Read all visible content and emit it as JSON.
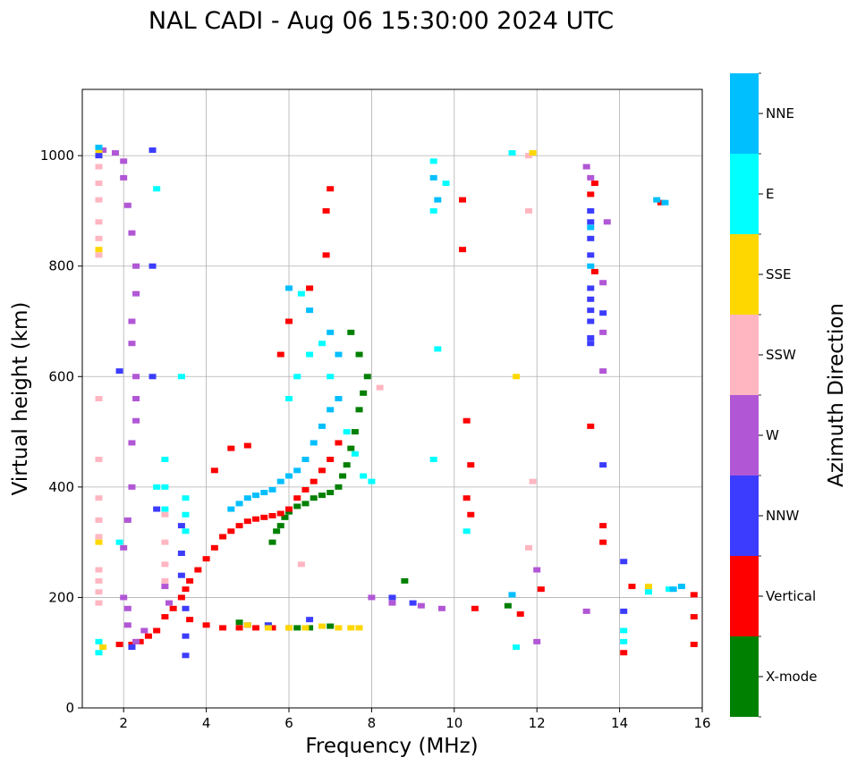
{
  "chart_data": {
    "type": "scatter",
    "title": "NAL CADI - Aug 06 15:30:00 2024 UTC",
    "xlabel": "Frequency (MHz)",
    "ylabel": "Virtual height (km)",
    "xlim": [
      1.0,
      16.0
    ],
    "ylim": [
      0,
      1120
    ],
    "xticks": [
      2,
      4,
      6,
      8,
      10,
      12,
      14,
      16
    ],
    "yticks": [
      0,
      200,
      400,
      600,
      800,
      1000
    ],
    "grid": true,
    "colorbar": {
      "label": "Azimuth Direction",
      "categories": [
        {
          "name": "X-mode",
          "color": "#008000"
        },
        {
          "name": "Vertical",
          "color": "#ff0000"
        },
        {
          "name": "NNW",
          "color": "#3c3cff"
        },
        {
          "name": "W",
          "color": "#b157d6"
        },
        {
          "name": "SSW",
          "color": "#ffb6c1"
        },
        {
          "name": "SSE",
          "color": "#ffd700"
        },
        {
          "name": "E",
          "color": "#00ffff"
        },
        {
          "name": "NNE",
          "color": "#00bfff"
        }
      ]
    },
    "series": [
      {
        "name": "X-mode",
        "points": [
          [
            5.6,
            300
          ],
          [
            5.7,
            320
          ],
          [
            5.8,
            330
          ],
          [
            5.9,
            345
          ],
          [
            6.0,
            355
          ],
          [
            6.2,
            365
          ],
          [
            6.4,
            370
          ],
          [
            6.6,
            380
          ],
          [
            6.8,
            385
          ],
          [
            7.0,
            390
          ],
          [
            7.2,
            400
          ],
          [
            7.3,
            420
          ],
          [
            7.4,
            440
          ],
          [
            7.5,
            470
          ],
          [
            7.6,
            500
          ],
          [
            7.7,
            540
          ],
          [
            7.8,
            570
          ],
          [
            7.9,
            600
          ],
          [
            7.7,
            640
          ],
          [
            7.5,
            680
          ],
          [
            6.2,
            145
          ],
          [
            6.5,
            145
          ],
          [
            7.0,
            148
          ],
          [
            8.8,
            230
          ],
          [
            11.3,
            185
          ],
          [
            4.8,
            155
          ],
          [
            5.5,
            150
          ]
        ]
      },
      {
        "name": "Vertical",
        "points": [
          [
            1.9,
            115
          ],
          [
            2.2,
            115
          ],
          [
            2.4,
            120
          ],
          [
            2.6,
            130
          ],
          [
            2.8,
            140
          ],
          [
            3.0,
            165
          ],
          [
            3.2,
            180
          ],
          [
            3.4,
            200
          ],
          [
            3.5,
            215
          ],
          [
            3.6,
            230
          ],
          [
            3.8,
            250
          ],
          [
            4.0,
            270
          ],
          [
            4.2,
            290
          ],
          [
            4.4,
            310
          ],
          [
            4.6,
            320
          ],
          [
            4.8,
            330
          ],
          [
            5.0,
            338
          ],
          [
            5.2,
            342
          ],
          [
            5.4,
            345
          ],
          [
            5.6,
            348
          ],
          [
            5.8,
            352
          ],
          [
            6.0,
            360
          ],
          [
            6.2,
            380
          ],
          [
            6.4,
            395
          ],
          [
            6.6,
            410
          ],
          [
            6.8,
            430
          ],
          [
            7.0,
            450
          ],
          [
            7.2,
            480
          ],
          [
            3.6,
            160
          ],
          [
            4.0,
            150
          ],
          [
            4.4,
            145
          ],
          [
            4.8,
            145
          ],
          [
            5.2,
            145
          ],
          [
            5.6,
            145
          ],
          [
            6.0,
            145
          ],
          [
            4.2,
            430
          ],
          [
            4.6,
            470
          ],
          [
            5.0,
            475
          ],
          [
            5.8,
            640
          ],
          [
            6.0,
            700
          ],
          [
            6.5,
            760
          ],
          [
            6.9,
            820
          ],
          [
            6.9,
            900
          ],
          [
            7.0,
            940
          ],
          [
            10.2,
            920
          ],
          [
            10.2,
            830
          ],
          [
            10.3,
            520
          ],
          [
            10.4,
            440
          ],
          [
            10.3,
            380
          ],
          [
            10.4,
            350
          ],
          [
            10.5,
            180
          ],
          [
            11.6,
            170
          ],
          [
            12.1,
            215
          ],
          [
            13.3,
            510
          ],
          [
            13.6,
            330
          ],
          [
            13.6,
            300
          ],
          [
            14.1,
            100
          ],
          [
            14.3,
            220
          ],
          [
            15.0,
            915
          ],
          [
            15.8,
            205
          ],
          [
            15.8,
            165
          ],
          [
            15.8,
            115
          ],
          [
            13.4,
            950
          ],
          [
            13.3,
            930
          ],
          [
            13.4,
            790
          ]
        ]
      },
      {
        "name": "NNW",
        "points": [
          [
            1.4,
            1000
          ],
          [
            1.9,
            610
          ],
          [
            2.2,
            110
          ],
          [
            2.7,
            1010
          ],
          [
            2.7,
            800
          ],
          [
            2.7,
            600
          ],
          [
            2.8,
            360
          ],
          [
            3.4,
            330
          ],
          [
            3.4,
            280
          ],
          [
            3.4,
            240
          ],
          [
            3.5,
            180
          ],
          [
            3.5,
            130
          ],
          [
            3.5,
            95
          ],
          [
            5.0,
            150
          ],
          [
            5.5,
            150
          ],
          [
            6.5,
            160
          ],
          [
            8.5,
            200
          ],
          [
            9.0,
            190
          ],
          [
            13.3,
            900
          ],
          [
            13.3,
            880
          ],
          [
            13.3,
            850
          ],
          [
            13.3,
            820
          ],
          [
            13.3,
            760
          ],
          [
            13.3,
            740
          ],
          [
            13.3,
            720
          ],
          [
            13.3,
            700
          ],
          [
            13.3,
            670
          ],
          [
            13.3,
            660
          ],
          [
            13.6,
            715
          ],
          [
            13.6,
            440
          ],
          [
            14.1,
            265
          ],
          [
            14.1,
            175
          ]
        ]
      },
      {
        "name": "W",
        "points": [
          [
            1.5,
            1010
          ],
          [
            1.8,
            1005
          ],
          [
            2.0,
            990
          ],
          [
            2.0,
            960
          ],
          [
            2.1,
            910
          ],
          [
            2.2,
            860
          ],
          [
            2.3,
            800
          ],
          [
            2.3,
            750
          ],
          [
            2.2,
            700
          ],
          [
            2.2,
            660
          ],
          [
            2.3,
            600
          ],
          [
            2.3,
            560
          ],
          [
            2.3,
            520
          ],
          [
            2.2,
            480
          ],
          [
            2.2,
            400
          ],
          [
            2.1,
            340
          ],
          [
            2.0,
            290
          ],
          [
            2.0,
            200
          ],
          [
            2.1,
            180
          ],
          [
            2.1,
            150
          ],
          [
            2.3,
            120
          ],
          [
            2.5,
            140
          ],
          [
            3.0,
            220
          ],
          [
            3.1,
            190
          ],
          [
            8.0,
            200
          ],
          [
            8.5,
            190
          ],
          [
            9.2,
            185
          ],
          [
            9.7,
            180
          ],
          [
            12.0,
            250
          ],
          [
            12.0,
            120
          ],
          [
            13.2,
            980
          ],
          [
            13.3,
            960
          ],
          [
            13.6,
            680
          ],
          [
            13.6,
            610
          ],
          [
            13.7,
            880
          ],
          [
            13.6,
            770
          ],
          [
            13.2,
            175
          ]
        ]
      },
      {
        "name": "SSW",
        "points": [
          [
            1.4,
            980
          ],
          [
            1.4,
            950
          ],
          [
            1.4,
            920
          ],
          [
            1.4,
            880
          ],
          [
            1.4,
            850
          ],
          [
            1.4,
            820
          ],
          [
            1.4,
            560
          ],
          [
            1.4,
            450
          ],
          [
            1.4,
            380
          ],
          [
            1.4,
            340
          ],
          [
            1.4,
            310
          ],
          [
            1.4,
            250
          ],
          [
            1.4,
            230
          ],
          [
            1.4,
            210
          ],
          [
            1.4,
            190
          ],
          [
            3.0,
            350
          ],
          [
            3.0,
            300
          ],
          [
            3.0,
            260
          ],
          [
            3.0,
            230
          ],
          [
            6.3,
            260
          ],
          [
            8.2,
            580
          ],
          [
            11.8,
            1000
          ],
          [
            11.8,
            900
          ],
          [
            11.9,
            410
          ],
          [
            11.8,
            290
          ],
          [
            14.7,
            215
          ]
        ]
      },
      {
        "name": "SSE",
        "points": [
          [
            1.4,
            1010
          ],
          [
            1.4,
            830
          ],
          [
            1.4,
            300
          ],
          [
            1.5,
            110
          ],
          [
            5.0,
            150
          ],
          [
            5.5,
            145
          ],
          [
            6.0,
            145
          ],
          [
            6.4,
            145
          ],
          [
            6.8,
            148
          ],
          [
            7.2,
            145
          ],
          [
            7.5,
            145
          ],
          [
            7.7,
            145
          ],
          [
            11.5,
            600
          ],
          [
            11.9,
            1005
          ],
          [
            14.7,
            220
          ]
        ]
      },
      {
        "name": "E",
        "points": [
          [
            1.4,
            120
          ],
          [
            1.4,
            100
          ],
          [
            1.9,
            300
          ],
          [
            2.8,
            940
          ],
          [
            2.8,
            400
          ],
          [
            3.0,
            450
          ],
          [
            3.0,
            400
          ],
          [
            3.0,
            360
          ],
          [
            3.4,
            600
          ],
          [
            3.5,
            380
          ],
          [
            3.5,
            350
          ],
          [
            3.5,
            320
          ],
          [
            6.0,
            560
          ],
          [
            6.2,
            600
          ],
          [
            6.5,
            640
          ],
          [
            6.8,
            660
          ],
          [
            7.0,
            600
          ],
          [
            7.2,
            560
          ],
          [
            7.4,
            500
          ],
          [
            7.6,
            460
          ],
          [
            7.8,
            420
          ],
          [
            8.0,
            410
          ],
          [
            6.3,
            750
          ],
          [
            9.5,
            990
          ],
          [
            9.5,
            900
          ],
          [
            9.5,
            450
          ],
          [
            9.6,
            650
          ],
          [
            9.8,
            950
          ],
          [
            10.3,
            320
          ],
          [
            11.4,
            1005
          ],
          [
            11.5,
            110
          ],
          [
            14.1,
            140
          ],
          [
            14.1,
            120
          ],
          [
            14.7,
            210
          ],
          [
            15.2,
            215
          ]
        ]
      },
      {
        "name": "NNE",
        "points": [
          [
            1.4,
            1015
          ],
          [
            4.6,
            360
          ],
          [
            4.8,
            370
          ],
          [
            5.0,
            380
          ],
          [
            5.2,
            385
          ],
          [
            5.4,
            390
          ],
          [
            5.6,
            395
          ],
          [
            5.8,
            410
          ],
          [
            6.0,
            420
          ],
          [
            6.2,
            430
          ],
          [
            6.4,
            450
          ],
          [
            6.6,
            480
          ],
          [
            6.8,
            510
          ],
          [
            7.0,
            540
          ],
          [
            7.2,
            560
          ],
          [
            6.0,
            760
          ],
          [
            6.5,
            720
          ],
          [
            7.0,
            680
          ],
          [
            7.2,
            640
          ],
          [
            9.5,
            960
          ],
          [
            9.6,
            920
          ],
          [
            11.4,
            205
          ],
          [
            13.3,
            870
          ],
          [
            13.3,
            800
          ],
          [
            14.9,
            920
          ],
          [
            15.1,
            915
          ],
          [
            15.3,
            215
          ],
          [
            15.5,
            220
          ]
        ]
      }
    ]
  }
}
